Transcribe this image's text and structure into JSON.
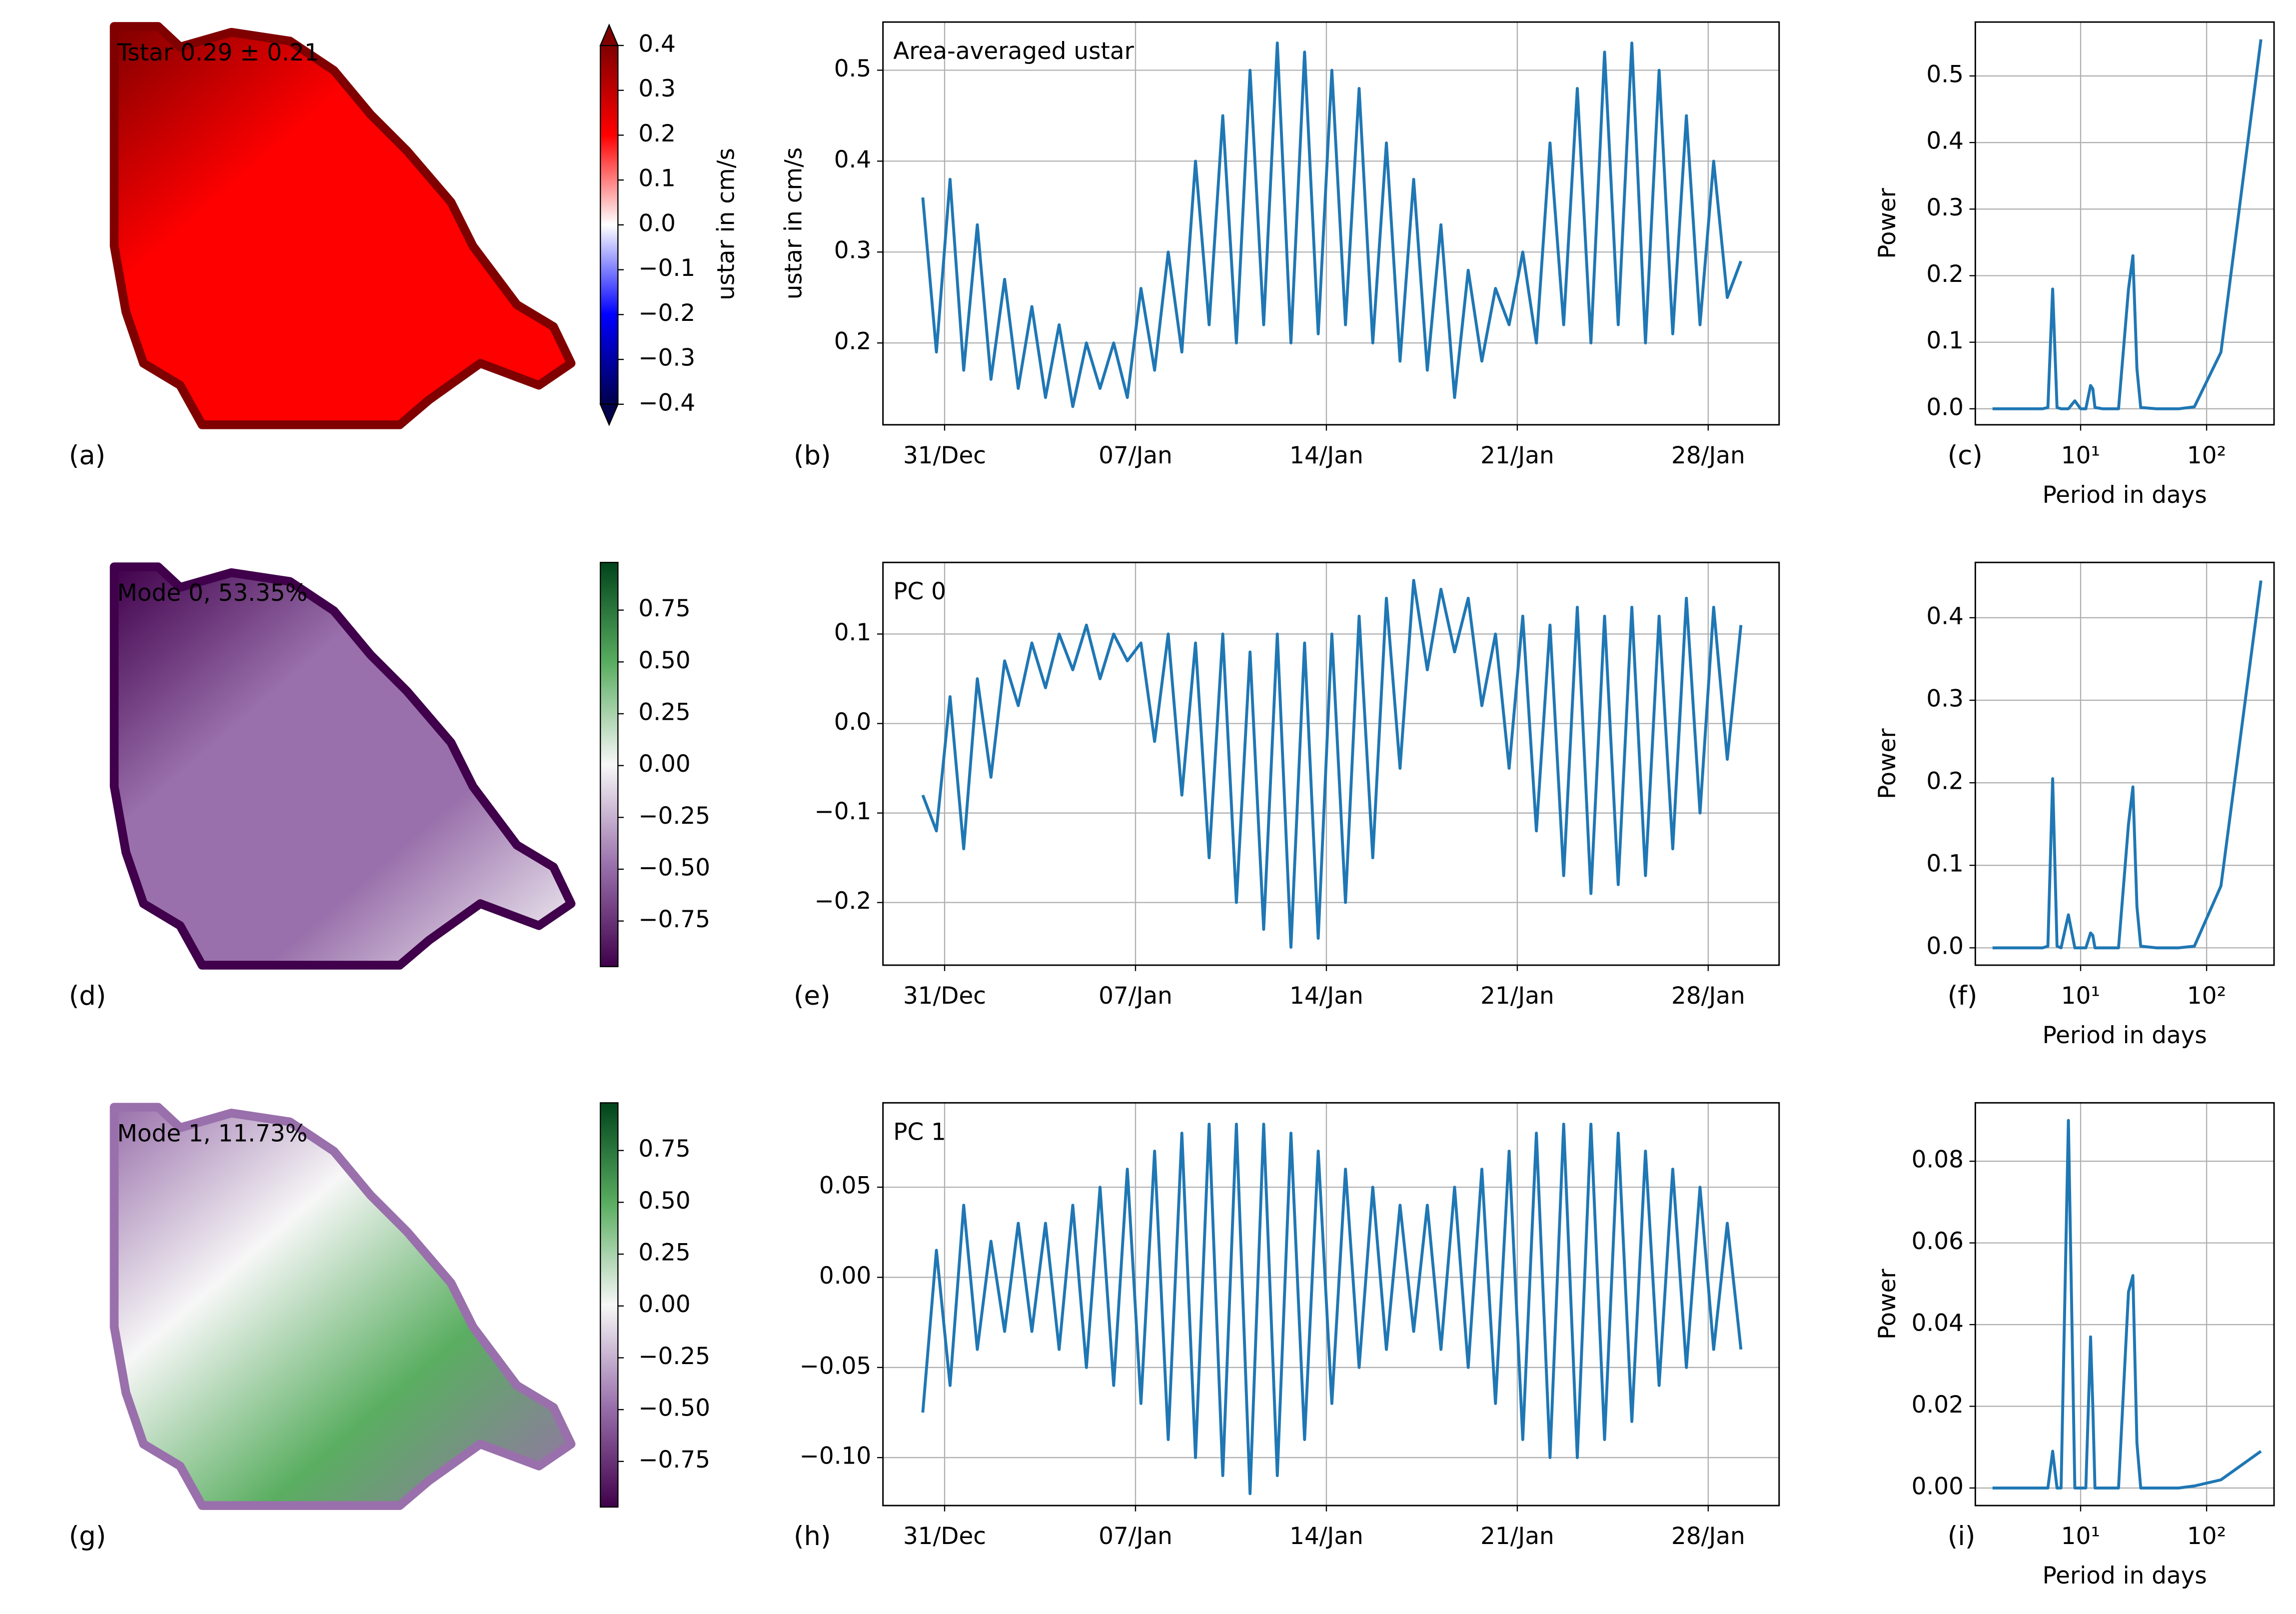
{
  "chart_data": [
    {
      "type": "map",
      "title": "Tstar 0.29 ± 0.21",
      "panel_label": "(a)",
      "colorbar_label": "ustar in cm/s",
      "clim": [
        -0.4,
        0.4
      ],
      "colorbar_extend": "both",
      "cticks": [
        0.4,
        0.3,
        0.2,
        0.1,
        {
          "value": 0,
          "label": "0.0"
        },
        {
          "value": -0.1,
          "label": "−0.1"
        },
        {
          "value": -0.2,
          "label": "−0.2"
        },
        {
          "value": -0.3,
          "label": "−0.3"
        },
        {
          "value": -0.4,
          "label": "−0.4"
        }
      ],
      "colors": [
        "#00004c",
        "#0000ff",
        "#ffffff",
        "#ff0000",
        "#800000"
      ]
    },
    {
      "type": "line",
      "title": "Area-averaged ustar",
      "panel_label": "(b)",
      "ylabel": "ustar in cm/s",
      "color": "#1f77b4",
      "grid": true,
      "xlim": [
        -2.26,
        30.6
      ],
      "ylim": [
        0.11,
        0.553
      ],
      "xticks": [
        {
          "value": 0,
          "label": "31/Dec"
        },
        {
          "value": 7,
          "label": "07/Jan"
        },
        {
          "value": 14,
          "label": "14/Jan"
        },
        {
          "value": 21,
          "label": "21/Jan"
        },
        {
          "value": 28,
          "label": "28/Jan"
        }
      ],
      "yticks": [
        0.2,
        0.3,
        0.4,
        0.5
      ],
      "x": [
        -0.8,
        -0.3,
        0.2,
        0.7,
        1.2,
        1.7,
        2.2,
        2.7,
        3.2,
        3.7,
        4.2,
        4.7,
        5.2,
        5.7,
        6.2,
        6.7,
        7.2,
        7.7,
        8.2,
        8.7,
        9.2,
        9.7,
        10.2,
        10.7,
        11.2,
        11.7,
        12.2,
        12.7,
        13.2,
        13.7,
        14.2,
        14.7,
        15.2,
        15.7,
        16.2,
        16.7,
        17.2,
        17.7,
        18.2,
        18.7,
        19.2,
        19.7,
        20.2,
        20.7,
        21.2,
        21.7,
        22.2,
        22.7,
        23.2,
        23.7,
        24.2,
        24.7,
        25.2,
        25.7,
        26.2,
        26.7,
        27.2,
        27.7,
        28.2,
        28.7,
        29.2
      ],
      "values": [
        0.36,
        0.19,
        0.38,
        0.17,
        0.33,
        0.16,
        0.27,
        0.15,
        0.24,
        0.14,
        0.22,
        0.13,
        0.2,
        0.15,
        0.2,
        0.14,
        0.26,
        0.17,
        0.3,
        0.19,
        0.4,
        0.22,
        0.45,
        0.2,
        0.5,
        0.22,
        0.53,
        0.2,
        0.52,
        0.21,
        0.5,
        0.22,
        0.48,
        0.2,
        0.42,
        0.18,
        0.38,
        0.17,
        0.33,
        0.14,
        0.28,
        0.18,
        0.26,
        0.22,
        0.3,
        0.2,
        0.42,
        0.22,
        0.48,
        0.2,
        0.52,
        0.22,
        0.53,
        0.2,
        0.5,
        0.21,
        0.45,
        0.22,
        0.4,
        0.25,
        0.29
      ]
    },
    {
      "type": "line",
      "panel_label": "(c)",
      "ylabel": "Power",
      "xlabel": "Period in days",
      "color": "#1f77b4",
      "grid": true,
      "xlog": true,
      "xlim": [
        1.46,
        343
      ],
      "ylim": [
        -0.024,
        0.581
      ],
      "xticks": [
        {
          "value": 10,
          "label": "10¹"
        },
        {
          "value": 100,
          "label": "10²"
        }
      ],
      "yticks": [
        {
          "value": 0,
          "label": "0.0"
        },
        0.1,
        0.2,
        0.3,
        0.4,
        0.5
      ],
      "x": [
        2,
        3,
        4,
        5,
        5.5,
        6,
        6.5,
        7,
        8,
        9,
        10,
        11,
        12,
        12.5,
        13,
        15,
        20,
        24,
        26,
        28,
        30,
        40,
        60,
        80,
        130,
        270
      ],
      "values": [
        0,
        0,
        0,
        0,
        0.002,
        0.18,
        0.002,
        0,
        0,
        0.012,
        0,
        0,
        0.035,
        0.03,
        0.002,
        0,
        0,
        0.18,
        0.23,
        0.06,
        0.002,
        0,
        0,
        0.003,
        0.085,
        0.555
      ]
    },
    {
      "type": "map",
      "title": "Mode 0, 53.35%",
      "panel_label": "(d)",
      "clim": [
        -0.97,
        0.98
      ],
      "colorbar_extend": "neither",
      "cticks": [
        0.75,
        {
          "value": 0.5,
          "label": "0.50"
        },
        0.25,
        {
          "value": 0,
          "label": "0.00"
        },
        {
          "value": -0.25,
          "label": "−0.25"
        },
        {
          "value": -0.5,
          "label": "−0.50"
        },
        {
          "value": -0.75,
          "label": "−0.75"
        }
      ],
      "colors": [
        "#40004b",
        "#9970ab",
        "#f7f7f7",
        "#5aae61",
        "#00441b"
      ]
    },
    {
      "type": "line",
      "title": "PC 0",
      "panel_label": "(e)",
      "color": "#1f77b4",
      "grid": true,
      "xlim": [
        -2.26,
        30.6
      ],
      "ylim": [
        -0.27,
        0.18
      ],
      "xticks": [
        {
          "value": 0,
          "label": "31/Dec"
        },
        {
          "value": 7,
          "label": "07/Jan"
        },
        {
          "value": 14,
          "label": "14/Jan"
        },
        {
          "value": 21,
          "label": "21/Jan"
        },
        {
          "value": 28,
          "label": "28/Jan"
        }
      ],
      "yticks": [
        0.1,
        {
          "value": 0,
          "label": "0.0"
        },
        {
          "value": -0.1,
          "label": "−0.1"
        },
        {
          "value": -0.2,
          "label": "−0.2"
        }
      ],
      "x": [
        -0.8,
        -0.3,
        0.2,
        0.7,
        1.2,
        1.7,
        2.2,
        2.7,
        3.2,
        3.7,
        4.2,
        4.7,
        5.2,
        5.7,
        6.2,
        6.7,
        7.2,
        7.7,
        8.2,
        8.7,
        9.2,
        9.7,
        10.2,
        10.7,
        11.2,
        11.7,
        12.2,
        12.7,
        13.2,
        13.7,
        14.2,
        14.7,
        15.2,
        15.7,
        16.2,
        16.7,
        17.2,
        17.7,
        18.2,
        18.7,
        19.2,
        19.7,
        20.2,
        20.7,
        21.2,
        21.7,
        22.2,
        22.7,
        23.2,
        23.7,
        24.2,
        24.7,
        25.2,
        25.7,
        26.2,
        26.7,
        27.2,
        27.7,
        28.2,
        28.7,
        29.2
      ],
      "values": [
        -0.08,
        -0.12,
        0.03,
        -0.14,
        0.05,
        -0.06,
        0.07,
        0.02,
        0.09,
        0.04,
        0.1,
        0.06,
        0.11,
        0.05,
        0.1,
        0.07,
        0.09,
        -0.02,
        0.1,
        -0.08,
        0.09,
        -0.15,
        0.1,
        -0.2,
        0.08,
        -0.23,
        0.1,
        -0.25,
        0.09,
        -0.24,
        0.1,
        -0.2,
        0.12,
        -0.15,
        0.14,
        -0.05,
        0.16,
        0.06,
        0.15,
        0.08,
        0.14,
        0.02,
        0.1,
        -0.05,
        0.12,
        -0.12,
        0.11,
        -0.17,
        0.13,
        -0.19,
        0.12,
        -0.18,
        0.13,
        -0.17,
        0.12,
        -0.14,
        0.14,
        -0.1,
        0.13,
        -0.04,
        0.11
      ]
    },
    {
      "type": "line",
      "panel_label": "(f)",
      "ylabel": "Power",
      "xlabel": "Period in days",
      "color": "#1f77b4",
      "grid": true,
      "xlog": true,
      "xlim": [
        1.46,
        343
      ],
      "ylim": [
        -0.021,
        0.467
      ],
      "xticks": [
        {
          "value": 10,
          "label": "10¹"
        },
        {
          "value": 100,
          "label": "10²"
        }
      ],
      "yticks": [
        {
          "value": 0,
          "label": "0.0"
        },
        0.1,
        0.2,
        0.3,
        0.4
      ],
      "x": [
        2,
        3,
        4,
        5,
        5.5,
        6,
        6.5,
        7,
        8,
        9,
        10,
        11,
        12,
        12.5,
        13,
        15,
        20,
        24,
        26,
        28,
        30,
        40,
        60,
        80,
        130,
        270
      ],
      "values": [
        0,
        0,
        0,
        0,
        0.002,
        0.205,
        0.002,
        0,
        0.04,
        0,
        0,
        0,
        0.018,
        0.015,
        0,
        0,
        0,
        0.15,
        0.195,
        0.05,
        0.002,
        0,
        0,
        0.002,
        0.075,
        0.445
      ]
    },
    {
      "type": "map",
      "title": "Mode 1, 11.73%",
      "panel_label": "(g)",
      "clim": [
        -0.97,
        0.98
      ],
      "colorbar_extend": "neither",
      "cticks": [
        0.75,
        {
          "value": 0.5,
          "label": "0.50"
        },
        0.25,
        {
          "value": 0,
          "label": "0.00"
        },
        {
          "value": -0.25,
          "label": "−0.25"
        },
        {
          "value": -0.5,
          "label": "−0.50"
        },
        {
          "value": -0.75,
          "label": "−0.75"
        }
      ],
      "colors": [
        "#40004b",
        "#9970ab",
        "#f7f7f7",
        "#5aae61",
        "#00441b"
      ]
    },
    {
      "type": "line",
      "title": "PC 1",
      "panel_label": "(h)",
      "color": "#1f77b4",
      "grid": true,
      "xlim": [
        -2.26,
        30.6
      ],
      "ylim": [
        -0.1266,
        0.0968
      ],
      "xticks": [
        {
          "value": 0,
          "label": "31/Dec"
        },
        {
          "value": 7,
          "label": "07/Jan"
        },
        {
          "value": 14,
          "label": "14/Jan"
        },
        {
          "value": 21,
          "label": "21/Jan"
        },
        {
          "value": 28,
          "label": "28/Jan"
        }
      ],
      "yticks": [
        0.05,
        {
          "value": 0,
          "label": "0.00"
        },
        {
          "value": -0.05,
          "label": "−0.05"
        },
        {
          "value": -0.1,
          "label": "−0.10"
        }
      ],
      "x": [
        -0.8,
        -0.3,
        0.2,
        0.7,
        1.2,
        1.7,
        2.2,
        2.7,
        3.2,
        3.7,
        4.2,
        4.7,
        5.2,
        5.7,
        6.2,
        6.7,
        7.2,
        7.7,
        8.2,
        8.7,
        9.2,
        9.7,
        10.2,
        10.7,
        11.2,
        11.7,
        12.2,
        12.7,
        13.2,
        13.7,
        14.2,
        14.7,
        15.2,
        15.7,
        16.2,
        16.7,
        17.2,
        17.7,
        18.2,
        18.7,
        19.2,
        19.7,
        20.2,
        20.7,
        21.2,
        21.7,
        22.2,
        22.7,
        23.2,
        23.7,
        24.2,
        24.7,
        25.2,
        25.7,
        26.2,
        26.7,
        27.2,
        27.7,
        28.2,
        28.7,
        29.2
      ],
      "values": [
        -0.075,
        0.015,
        -0.06,
        0.04,
        -0.04,
        0.02,
        -0.03,
        0.03,
        -0.03,
        0.03,
        -0.04,
        0.04,
        -0.05,
        0.05,
        -0.06,
        0.06,
        -0.07,
        0.07,
        -0.09,
        0.08,
        -0.1,
        0.085,
        -0.11,
        0.085,
        -0.12,
        0.085,
        -0.11,
        0.08,
        -0.09,
        0.07,
        -0.07,
        0.06,
        -0.05,
        0.05,
        -0.04,
        0.04,
        -0.03,
        0.04,
        -0.04,
        0.05,
        -0.05,
        0.06,
        -0.07,
        0.07,
        -0.09,
        0.08,
        -0.1,
        0.085,
        -0.1,
        0.085,
        -0.09,
        0.08,
        -0.08,
        0.07,
        -0.06,
        0.06,
        -0.05,
        0.05,
        -0.04,
        0.03,
        -0.04
      ]
    },
    {
      "type": "line",
      "panel_label": "(i)",
      "ylabel": "Power",
      "xlabel": "Period in days",
      "color": "#1f77b4",
      "grid": true,
      "xlog": true,
      "xlim": [
        1.46,
        343
      ],
      "ylim": [
        -0.0043,
        0.0943
      ],
      "xticks": [
        {
          "value": 10,
          "label": "10¹"
        },
        {
          "value": 100,
          "label": "10²"
        }
      ],
      "yticks": [
        {
          "value": 0,
          "label": "0.00"
        },
        0.02,
        0.04,
        0.06,
        0.08
      ],
      "x": [
        2,
        3,
        4,
        5,
        5.5,
        6,
        6.5,
        7,
        8,
        9,
        10,
        11,
        12,
        12.5,
        13,
        15,
        20,
        24,
        26,
        28,
        30,
        40,
        60,
        80,
        130,
        270
      ],
      "values": [
        0,
        0,
        0,
        0,
        0,
        0.009,
        0,
        0,
        0.09,
        0,
        0,
        0,
        0.037,
        0.02,
        0,
        0,
        0,
        0.048,
        0.052,
        0.011,
        0,
        0,
        0,
        0.0005,
        0.002,
        0.009
      ]
    }
  ]
}
